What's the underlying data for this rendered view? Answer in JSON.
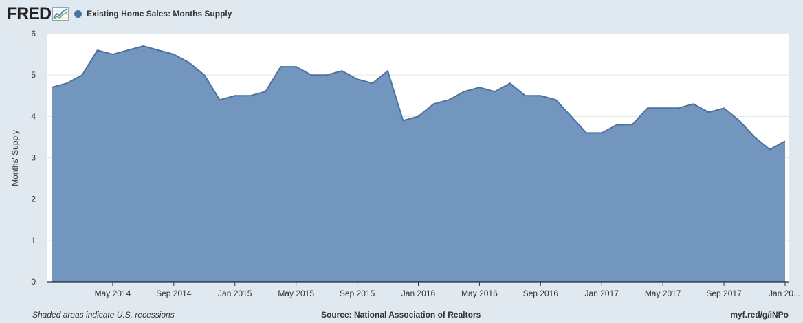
{
  "header": {
    "logo_text": "FRED",
    "series_title": "Existing Home Sales: Months Supply"
  },
  "footer": {
    "note": "Shaded areas indicate U.S. recessions",
    "source": "Source: National Association of Realtors",
    "link": "myf.red/g/iNPo"
  },
  "colors": {
    "series": "#4572a7",
    "fill": "#7396bf",
    "background": "#e1e9f0",
    "plot": "#ffffff"
  },
  "chart_data": {
    "type": "area",
    "title": "Existing Home Sales: Months Supply",
    "ylabel": "Months' Supply",
    "xlabel": "",
    "ylim": [
      0,
      6
    ],
    "yticks": [
      0,
      1,
      2,
      3,
      4,
      5,
      6
    ],
    "xticks": [
      "May 2014",
      "Sep 2014",
      "Jan 2015",
      "May 2015",
      "Sep 2015",
      "Jan 2016",
      "May 2016",
      "Sep 2016",
      "Jan 2017",
      "May 2017",
      "Sep 2017",
      "Jan 20..."
    ],
    "grid": true,
    "series": [
      {
        "name": "Existing Home Sales: Months Supply",
        "x": [
          "2014-01",
          "2014-02",
          "2014-03",
          "2014-04",
          "2014-05",
          "2014-06",
          "2014-07",
          "2014-08",
          "2014-09",
          "2014-10",
          "2014-11",
          "2014-12",
          "2015-01",
          "2015-02",
          "2015-03",
          "2015-04",
          "2015-05",
          "2015-06",
          "2015-07",
          "2015-08",
          "2015-09",
          "2015-10",
          "2015-11",
          "2015-12",
          "2016-01",
          "2016-02",
          "2016-03",
          "2016-04",
          "2016-05",
          "2016-06",
          "2016-07",
          "2016-08",
          "2016-09",
          "2016-10",
          "2016-11",
          "2016-12",
          "2017-01",
          "2017-02",
          "2017-03",
          "2017-04",
          "2017-05",
          "2017-06",
          "2017-07",
          "2017-08",
          "2017-09",
          "2017-10",
          "2017-11",
          "2017-12",
          "2018-01"
        ],
        "values": [
          4.7,
          4.8,
          5.0,
          5.6,
          5.5,
          5.6,
          5.7,
          5.6,
          5.5,
          5.3,
          5.0,
          4.4,
          4.5,
          4.5,
          4.6,
          5.2,
          5.2,
          5.0,
          5.0,
          5.1,
          4.9,
          4.8,
          5.1,
          3.9,
          4.0,
          4.3,
          4.4,
          4.6,
          4.7,
          4.6,
          4.8,
          4.5,
          4.5,
          4.4,
          4.0,
          3.6,
          3.6,
          3.8,
          3.8,
          4.2,
          4.2,
          4.2,
          4.3,
          4.1,
          4.2,
          3.9,
          3.5,
          3.2,
          3.4
        ]
      }
    ]
  }
}
